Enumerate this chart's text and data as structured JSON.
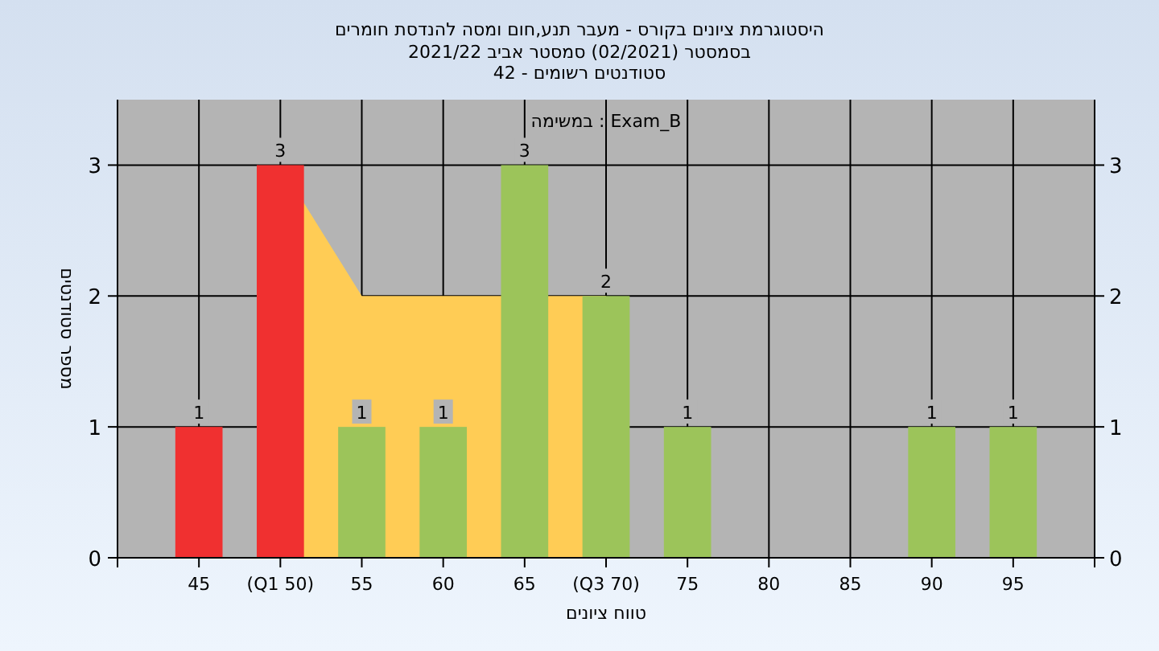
{
  "chart_data": {
    "type": "bar",
    "title": "היסטוגרמת ציונים בקורס - מעבר תנע,חום ומסה להנדסת חומרים",
    "subtitle": "בסמסטר (02/2021) סמסטר אביב 2021/22\nסטודנטים רשומים - 42",
    "xlabel": "טווח ציונים",
    "ylabel": "מספר סטודנטים",
    "annotations": [
      "במשימה : Exam_B"
    ],
    "categories": [
      "45",
      "(Q1 50)",
      "55",
      "60",
      "65",
      "(Q3 70)",
      "75",
      "80",
      "85",
      "90",
      "95"
    ],
    "series": [
      {
        "type": "area",
        "color": "#ffcc55",
        "values": [
          null,
          3,
          2,
          2,
          null,
          2,
          null,
          null,
          null,
          null,
          null
        ]
      },
      {
        "type": "bar",
        "colors": [
          "#f03030",
          "#f03030",
          "#9cc45a",
          "#9cc45a",
          "#9cc45a",
          "#9cc45a",
          "#9cc45a",
          "#9cc45a",
          "#9cc45a",
          "#9cc45a",
          "#9cc45a"
        ],
        "values": [
          1,
          3,
          1,
          1,
          3,
          2,
          1,
          0,
          0,
          1,
          1
        ],
        "value_labels": [
          "1",
          "3",
          "1",
          "1",
          "3",
          "2",
          "1",
          null,
          null,
          "1",
          "1"
        ]
      }
    ],
    "ylim": [
      0,
      3.5
    ],
    "yticks": [
      0,
      1,
      2,
      3
    ],
    "y2lim": [
      0,
      3.5
    ],
    "y2ticks": [
      0,
      1,
      2,
      3
    ],
    "grid": true
  }
}
